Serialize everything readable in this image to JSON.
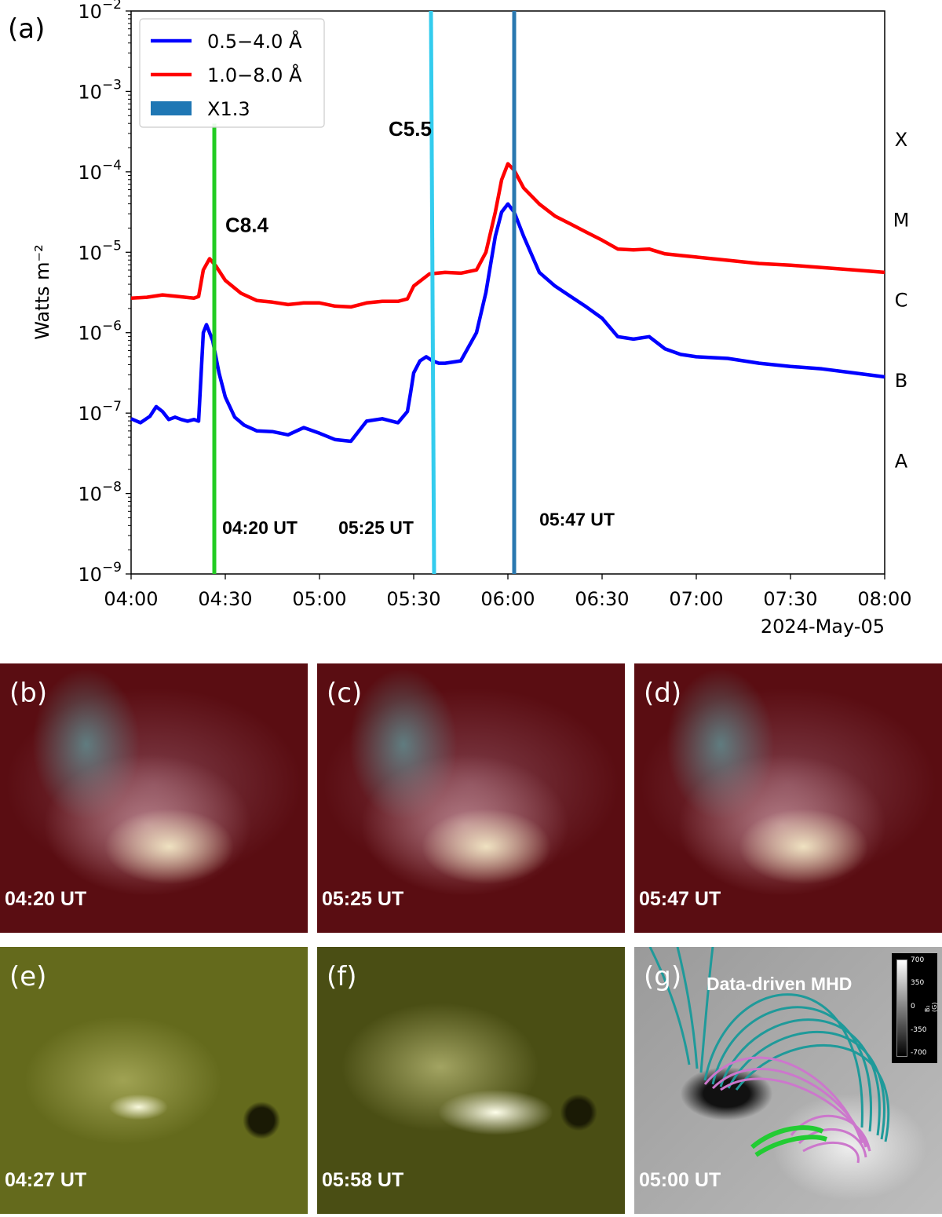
{
  "panel_a": {
    "label": "(a)",
    "date_label": "2024-May-05",
    "chart_data": {
      "type": "line",
      "title": "",
      "xlabel": "",
      "ylabel": "Watts m⁻²",
      "x_unit": "minutes after 04:00 UT",
      "xlim": [
        0,
        240
      ],
      "ylim_log10": [
        -9,
        -2
      ],
      "x_ticks": [
        {
          "v": 0,
          "label": "04:00"
        },
        {
          "v": 30,
          "label": "04:30"
        },
        {
          "v": 60,
          "label": "05:00"
        },
        {
          "v": 90,
          "label": "05:30"
        },
        {
          "v": 120,
          "label": "06:00"
        },
        {
          "v": 150,
          "label": "06:30"
        },
        {
          "v": 180,
          "label": "07:00"
        },
        {
          "v": 210,
          "label": "07:30"
        },
        {
          "v": 240,
          "label": "08:00"
        }
      ],
      "y_ticks": [
        {
          "v": -9,
          "label": "10",
          "exp": "−9"
        },
        {
          "v": -8,
          "label": "10",
          "exp": "−8"
        },
        {
          "v": -7,
          "label": "10",
          "exp": "−7"
        },
        {
          "v": -6,
          "label": "10",
          "exp": "−6"
        },
        {
          "v": -5,
          "label": "10",
          "exp": "−5"
        },
        {
          "v": -4,
          "label": "10",
          "exp": "−4"
        },
        {
          "v": -3,
          "label": "10",
          "exp": "−3"
        },
        {
          "v": -2,
          "label": "10",
          "exp": "−2"
        }
      ],
      "flare_classes": [
        {
          "v": -3.6,
          "label": "X"
        },
        {
          "v": -4.6,
          "label": "M"
        },
        {
          "v": -5.6,
          "label": "C"
        },
        {
          "v": -6.6,
          "label": "B"
        },
        {
          "v": -7.6,
          "label": "A"
        }
      ],
      "legend": [
        {
          "label": "0.5−4.0 Å",
          "color": "#0000ff",
          "kind": "line"
        },
        {
          "label": "1.0−8.0 Å",
          "color": "#ff0000",
          "kind": "line"
        },
        {
          "label": "X1.3",
          "color": "#1f77b4",
          "kind": "patch"
        }
      ],
      "series": [
        {
          "name": "1.0−8.0 Å",
          "color": "#ff0000",
          "x": [
            0,
            5,
            10,
            15,
            20,
            21.5,
            23,
            25,
            27,
            30,
            35,
            40,
            45,
            50,
            55,
            60,
            65,
            70,
            75,
            80,
            85,
            88,
            90,
            95,
            100,
            105,
            110,
            113,
            116,
            118,
            120,
            122,
            125,
            130,
            135,
            140,
            145,
            150,
            155,
            160,
            165,
            170,
            175,
            180,
            190,
            200,
            210,
            220,
            230,
            240
          ],
          "log_y": [
            -5.57,
            -5.56,
            -5.53,
            -5.55,
            -5.57,
            -5.55,
            -5.22,
            -5.08,
            -5.17,
            -5.35,
            -5.51,
            -5.6,
            -5.62,
            -5.65,
            -5.63,
            -5.63,
            -5.67,
            -5.68,
            -5.63,
            -5.61,
            -5.61,
            -5.58,
            -5.42,
            -5.27,
            -5.25,
            -5.26,
            -5.22,
            -5.0,
            -4.5,
            -4.1,
            -3.9,
            -3.98,
            -4.2,
            -4.4,
            -4.55,
            -4.65,
            -4.75,
            -4.85,
            -4.96,
            -4.97,
            -4.96,
            -5.02,
            -5.04,
            -5.06,
            -5.1,
            -5.14,
            -5.16,
            -5.19,
            -5.22,
            -5.25
          ]
        },
        {
          "name": "0.5−4.0 Å",
          "color": "#0000ff",
          "x": [
            0,
            3,
            6,
            8,
            10,
            12,
            14,
            16,
            18,
            20,
            21.5,
            23,
            24,
            26,
            28,
            30,
            33,
            36,
            40,
            45,
            50,
            55,
            60,
            65,
            70,
            75,
            80,
            85,
            88,
            89,
            90,
            92,
            94,
            96,
            98,
            100,
            105,
            110,
            113,
            116,
            118,
            120,
            122,
            125,
            130,
            135,
            140,
            145,
            150,
            155,
            160,
            165,
            170,
            175,
            180,
            190,
            200,
            210,
            220,
            230,
            240
          ],
          "log_y": [
            -7.07,
            -7.12,
            -7.04,
            -6.92,
            -6.98,
            -7.08,
            -7.05,
            -7.08,
            -7.1,
            -7.08,
            -7.1,
            -6.0,
            -5.9,
            -6.1,
            -6.5,
            -6.8,
            -7.05,
            -7.15,
            -7.22,
            -7.23,
            -7.27,
            -7.18,
            -7.25,
            -7.33,
            -7.35,
            -7.1,
            -7.07,
            -7.12,
            -6.98,
            -6.75,
            -6.5,
            -6.35,
            -6.3,
            -6.35,
            -6.38,
            -6.38,
            -6.35,
            -6.0,
            -5.5,
            -4.8,
            -4.5,
            -4.4,
            -4.5,
            -4.8,
            -5.25,
            -5.42,
            -5.55,
            -5.68,
            -5.82,
            -6.05,
            -6.08,
            -6.05,
            -6.2,
            -6.27,
            -6.3,
            -6.32,
            -6.38,
            -6.42,
            -6.45,
            -6.5,
            -6.55
          ]
        }
      ],
      "vlines": [
        {
          "x": 26.5,
          "x_bottom": 26.5,
          "top_log": -3.4,
          "color": "#22cc22",
          "flare_label": "C8.4",
          "flare_label_log": -4.75,
          "flare_label_x": 30,
          "time_label": "04:20 UT",
          "time_label_x": 41,
          "time_label_log": -8.5
        },
        {
          "x": 95.5,
          "x_bottom": 96.5,
          "top_log": -2.0,
          "color": "#33ccee",
          "flare_label": "C5.5",
          "flare_label_log": -3.55,
          "flare_label_x": 82,
          "time_label": "05:25 UT",
          "time_label_x": 78,
          "time_label_log": -8.5
        },
        {
          "x": 122,
          "x_bottom": 122,
          "top_log": -2.0,
          "color": "#2a78b0",
          "flare_label": "",
          "flare_label_log": -3.0,
          "flare_label_x": 0,
          "time_label": "05:47 UT",
          "time_label_x": 142,
          "time_label_log": -8.4
        }
      ]
    }
  },
  "panels": [
    {
      "label": "(b)",
      "time": "04:20 UT"
    },
    {
      "label": "(c)",
      "time": "05:25 UT"
    },
    {
      "label": "(d)",
      "time": "05:47 UT"
    },
    {
      "label": "(e)",
      "time": "04:27 UT"
    },
    {
      "label": "(f)",
      "time": "05:58 UT"
    },
    {
      "label": "(g)",
      "time": "05:00 UT",
      "title": "Data-driven MHD",
      "colorbar": {
        "ticks": [
          "700",
          "350",
          "0",
          "-350",
          "-700"
        ],
        "unit": "B₂ (G)"
      }
    }
  ]
}
